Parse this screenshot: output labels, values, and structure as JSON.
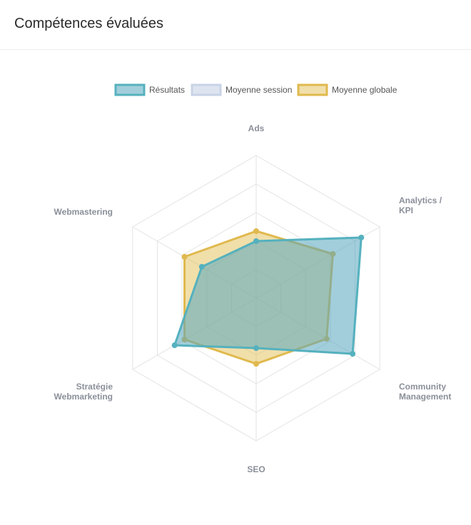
{
  "header": {
    "title": "Compétences évaluées"
  },
  "chart_data": {
    "type": "radar",
    "title": "",
    "axes": [
      {
        "label": [
          "Ads"
        ]
      },
      {
        "label": [
          "Analytics /",
          "KPI"
        ]
      },
      {
        "label": [
          "Community",
          "Management"
        ]
      },
      {
        "label": [
          "SEO"
        ]
      },
      {
        "label": [
          "Stratégie",
          "Webmarketing"
        ]
      },
      {
        "label": [
          "Webmastering"
        ]
      }
    ],
    "range": [
      0,
      100
    ],
    "grid_levels": 5,
    "legend": {
      "position": "top"
    },
    "series": [
      {
        "name": "Résultats",
        "values": [
          40,
          85,
          78,
          35,
          66,
          44
        ],
        "stroke": "#55b1be",
        "fill": "rgba(85,165,190,0.55)"
      },
      {
        "name": "Moyenne session",
        "values": [],
        "stroke": "#c8d3e6",
        "fill": "rgba(214,222,238,0.6)"
      },
      {
        "name": "Moyenne globale",
        "values": [
          47,
          62,
          57,
          46,
          58,
          58
        ],
        "stroke": "#e0b94e",
        "fill": "rgba(230,196,100,0.55)"
      }
    ]
  }
}
